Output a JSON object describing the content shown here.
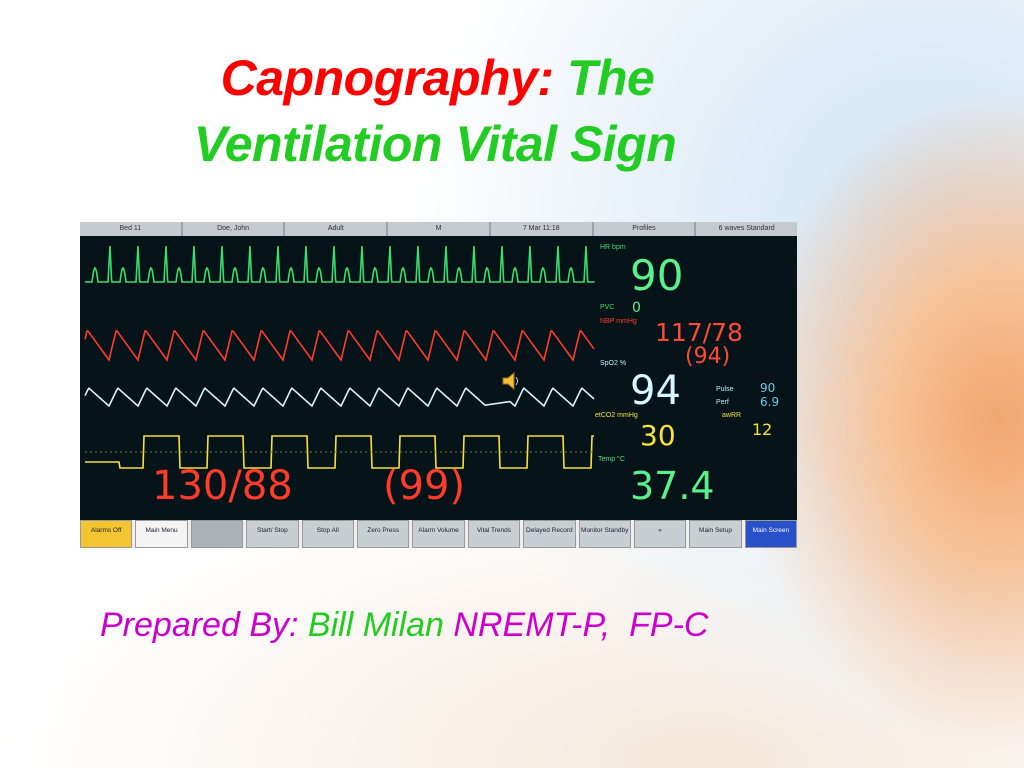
{
  "title": {
    "part1": "Capnography:",
    "part2": "The",
    "line2": "Ventilation Vital Sign"
  },
  "subtitle": {
    "prefix": "Prepared By:",
    "name": "Bill Milan",
    "credentials": "NREMT-P,  FP-C"
  },
  "monitor": {
    "header": [
      "Bed 11",
      "Doe, John",
      "Adult",
      "M",
      "7 Mar 11:18",
      "Profiles",
      "6 waves Standard"
    ],
    "hr": "90",
    "pvc": "0",
    "nbp": "117/78",
    "nbp_mean": "(94)",
    "spo2": "94",
    "pulse": "90",
    "perf": "6.9",
    "etco2": "30",
    "awrr": "12",
    "temp": "37.4",
    "abp": "130/88",
    "abp_mean": "(99)",
    "labels": {
      "hr": "HR bpm",
      "pvc": "PVC",
      "nbp": "NBP mmHg",
      "spo2": "SpO2 %",
      "pulse": "Pulse",
      "perf": "Perf",
      "etco2": "etCO2 mmHg",
      "awrr": "awRR",
      "temp": "Temp °C"
    },
    "buttons": [
      "Alarms Off",
      "Main Menu",
      "",
      "Start/ Stop",
      "Stop All",
      "Zero Press",
      "Alarm Volume",
      "Vital Trends",
      "Delayed Record",
      "Monitor Standby",
      "»",
      "Main Setup",
      "Main Screen"
    ],
    "colors": {
      "ecg": "#3ddc6a",
      "abp": "#ff3b2a",
      "pleth": "#d8f4f8",
      "co2": "#f5e23a",
      "temp": "#49e07a"
    }
  }
}
